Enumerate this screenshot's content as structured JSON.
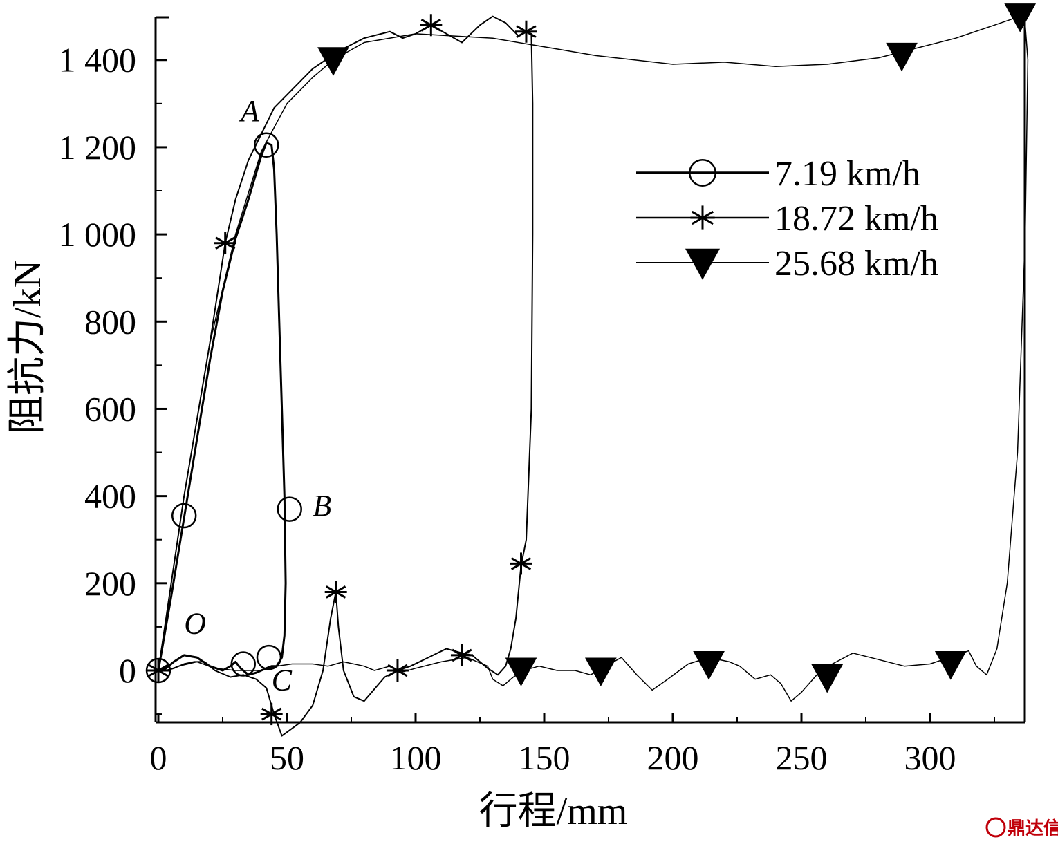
{
  "chart_data": {
    "type": "line",
    "xlabel": "行程/mm",
    "ylabel": "阻抗力/kN",
    "xlim": [
      0,
      338
    ],
    "ylim": [
      -115,
      1500
    ],
    "x_ticks": [
      0,
      50,
      100,
      150,
      200,
      250,
      300
    ],
    "x_tick_labels": [
      "0",
      "50",
      "100",
      "150",
      "200",
      "250",
      "300"
    ],
    "y_ticks": [
      0,
      200,
      400,
      600,
      800,
      1000,
      1200,
      1400
    ],
    "y_tick_labels": [
      "0",
      "200",
      "400",
      "600",
      "800",
      "1 000",
      "1 200",
      "1 400"
    ],
    "legend_position": "top-right",
    "series": [
      {
        "name": "7.19 km/h",
        "marker": "circle",
        "line_width": 3,
        "points": [
          [
            0,
            0
          ],
          [
            5,
            170
          ],
          [
            10,
            350
          ],
          [
            15,
            530
          ],
          [
            20,
            710
          ],
          [
            25,
            870
          ],
          [
            30,
            990
          ],
          [
            35,
            1080
          ],
          [
            38,
            1140
          ],
          [
            40,
            1180
          ],
          [
            42,
            1210
          ],
          [
            44,
            1205
          ],
          [
            45,
            1150
          ],
          [
            46,
            1000
          ],
          [
            47,
            800
          ],
          [
            48,
            600
          ],
          [
            49,
            400
          ],
          [
            49.5,
            200
          ],
          [
            49,
            80
          ],
          [
            48,
            30
          ],
          [
            46,
            10
          ],
          [
            44,
            10
          ],
          [
            42,
            5
          ],
          [
            40,
            0
          ],
          [
            38,
            -5
          ],
          [
            35,
            -10
          ],
          [
            32,
            5
          ],
          [
            30,
            20
          ],
          [
            28,
            10
          ],
          [
            25,
            0
          ],
          [
            20,
            10
          ],
          [
            15,
            30
          ],
          [
            10,
            35
          ],
          [
            6,
            20
          ],
          [
            3,
            5
          ],
          [
            0,
            0
          ]
        ],
        "marker_points": [
          [
            0,
            0
          ],
          [
            10,
            355
          ],
          [
            42,
            1205
          ],
          [
            51,
            370
          ],
          [
            33,
            15
          ],
          [
            43,
            30
          ]
        ]
      },
      {
        "name": "18.72 km/h",
        "marker": "asterisk",
        "line_width": 2,
        "points": [
          [
            0,
            0
          ],
          [
            10,
            400
          ],
          [
            20,
            750
          ],
          [
            26,
            980
          ],
          [
            30,
            1080
          ],
          [
            35,
            1170
          ],
          [
            40,
            1230
          ],
          [
            45,
            1290
          ],
          [
            50,
            1320
          ],
          [
            60,
            1380
          ],
          [
            70,
            1420
          ],
          [
            80,
            1450
          ],
          [
            90,
            1465
          ],
          [
            95,
            1450
          ],
          [
            100,
            1460
          ],
          [
            106,
            1480
          ],
          [
            112,
            1460
          ],
          [
            118,
            1440
          ],
          [
            125,
            1480
          ],
          [
            130,
            1500
          ],
          [
            135,
            1485
          ],
          [
            140,
            1455
          ],
          [
            143,
            1465
          ],
          [
            145,
            1460
          ],
          [
            145.5,
            1300
          ],
          [
            145.5,
            1000
          ],
          [
            145,
            600
          ],
          [
            143,
            300
          ],
          [
            141,
            240
          ],
          [
            139,
            120
          ],
          [
            137,
            50
          ],
          [
            135,
            10
          ],
          [
            132,
            -10
          ],
          [
            128,
            5
          ],
          [
            122,
            35
          ],
          [
            118,
            40
          ],
          [
            112,
            50
          ],
          [
            105,
            30
          ],
          [
            98,
            10
          ],
          [
            93,
            0
          ],
          [
            88,
            -15
          ],
          [
            80,
            -70
          ],
          [
            76,
            -60
          ],
          [
            72,
            0
          ],
          [
            70,
            100
          ],
          [
            69,
            180
          ],
          [
            67,
            120
          ],
          [
            64,
            0
          ],
          [
            60,
            -80
          ],
          [
            55,
            -120
          ],
          [
            48,
            -150
          ],
          [
            45,
            -100
          ],
          [
            42,
            -40
          ],
          [
            38,
            -20
          ],
          [
            33,
            -10
          ],
          [
            28,
            -15
          ],
          [
            22,
            0
          ],
          [
            18,
            20
          ],
          [
            14,
            20
          ],
          [
            10,
            15
          ],
          [
            6,
            5
          ],
          [
            3,
            0
          ],
          [
            0,
            0
          ]
        ],
        "marker_points": [
          [
            0,
            0
          ],
          [
            26,
            980
          ],
          [
            106,
            1480
          ],
          [
            143,
            1465
          ],
          [
            141,
            245
          ],
          [
            69,
            180
          ],
          [
            93,
            0
          ],
          [
            118,
            35
          ],
          [
            44,
            -100
          ]
        ]
      },
      {
        "name": "25.68 km/h",
        "marker": "triangle-down",
        "line_width": 1.5,
        "points": [
          [
            0,
            0
          ],
          [
            10,
            400
          ],
          [
            20,
            750
          ],
          [
            30,
            1000
          ],
          [
            40,
            1190
          ],
          [
            50,
            1300
          ],
          [
            60,
            1360
          ],
          [
            68,
            1400
          ],
          [
            80,
            1440
          ],
          [
            100,
            1460
          ],
          [
            130,
            1450
          ],
          [
            150,
            1430
          ],
          [
            170,
            1410
          ],
          [
            200,
            1390
          ],
          [
            220,
            1395
          ],
          [
            240,
            1385
          ],
          [
            260,
            1390
          ],
          [
            280,
            1405
          ],
          [
            290,
            1420
          ],
          [
            310,
            1450
          ],
          [
            325,
            1480
          ],
          [
            335,
            1500
          ],
          [
            337,
            1480
          ],
          [
            338,
            1400
          ],
          [
            337,
            1000
          ],
          [
            334,
            500
          ],
          [
            330,
            200
          ],
          [
            326,
            50
          ],
          [
            322,
            -10
          ],
          [
            318,
            10
          ],
          [
            315,
            45
          ],
          [
            310,
            35
          ],
          [
            300,
            15
          ],
          [
            290,
            10
          ],
          [
            280,
            25
          ],
          [
            270,
            40
          ],
          [
            262,
            15
          ],
          [
            256,
            -10
          ],
          [
            250,
            -50
          ],
          [
            246,
            -70
          ],
          [
            242,
            -30
          ],
          [
            238,
            -10
          ],
          [
            232,
            -20
          ],
          [
            226,
            10
          ],
          [
            222,
            20
          ],
          [
            214,
            30
          ],
          [
            206,
            15
          ],
          [
            198,
            -20
          ],
          [
            192,
            -45
          ],
          [
            186,
            -10
          ],
          [
            180,
            30
          ],
          [
            174,
            10
          ],
          [
            168,
            -10
          ],
          [
            162,
            0
          ],
          [
            155,
            0
          ],
          [
            148,
            10
          ],
          [
            142,
            0
          ],
          [
            138,
            -15
          ],
          [
            134,
            -35
          ],
          [
            130,
            -20
          ],
          [
            128,
            10
          ],
          [
            120,
            30
          ],
          [
            110,
            20
          ],
          [
            100,
            5
          ],
          [
            94,
            -5
          ],
          [
            90,
            10
          ],
          [
            84,
            0
          ],
          [
            80,
            10
          ],
          [
            72,
            20
          ],
          [
            66,
            10
          ],
          [
            60,
            15
          ],
          [
            52,
            15
          ],
          [
            46,
            10
          ],
          [
            40,
            0
          ],
          [
            30,
            0
          ],
          [
            22,
            5
          ],
          [
            15,
            20
          ],
          [
            8,
            10
          ],
          [
            3,
            0
          ],
          [
            0,
            0
          ]
        ],
        "marker_points": [
          [
            68,
            1400
          ],
          [
            141,
            0
          ],
          [
            172,
            0
          ],
          [
            214,
            15
          ],
          [
            260,
            -15
          ],
          [
            289,
            1410
          ],
          [
            308,
            15
          ],
          [
            335,
            1500
          ]
        ]
      }
    ],
    "annotations": [
      {
        "label": "A",
        "x": 32,
        "y": 1260
      },
      {
        "label": "B",
        "x": 60,
        "y": 355
      },
      {
        "label": "C",
        "x": 44,
        "y": -45
      },
      {
        "label": "O",
        "x": 10,
        "y": 85
      }
    ]
  },
  "watermark": "鼎达信"
}
